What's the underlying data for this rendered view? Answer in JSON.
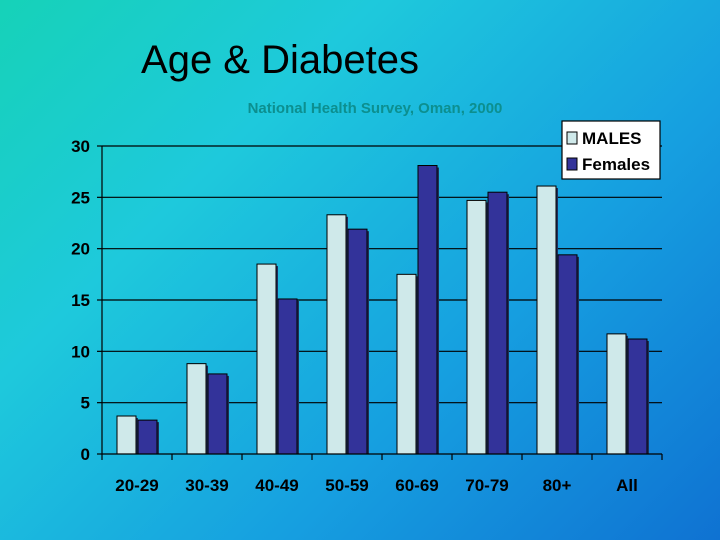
{
  "slide": {
    "title": "Age & Diabetes",
    "subtitle": "National Health Survey, Oman, 2000"
  },
  "chart_data": {
    "type": "bar",
    "categories": [
      "20-29",
      "30-39",
      "40-49",
      "50-59",
      "60-69",
      "70-79",
      "80+",
      "All"
    ],
    "series": [
      {
        "name": "MALES",
        "color": "#cfe9ea",
        "values": [
          3.7,
          8.8,
          18.5,
          23.3,
          17.5,
          24.7,
          26.1,
          11.7
        ]
      },
      {
        "name": "Females",
        "color": "#33339a",
        "values": [
          3.3,
          7.8,
          15.1,
          21.9,
          28.1,
          25.5,
          19.4,
          11.2
        ]
      }
    ],
    "ylim": [
      0,
      30
    ],
    "yticks": [
      0,
      5,
      10,
      15,
      20,
      25,
      30
    ],
    "grid": true,
    "legend_position": "top-right"
  }
}
